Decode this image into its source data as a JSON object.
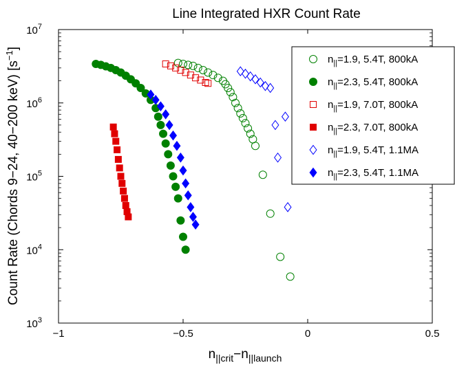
{
  "chart_data": {
    "type": "scatter",
    "title": "Line Integrated HXR Count Rate",
    "xlabel": {
      "base": "n",
      "sub1": "||crit",
      "mid": "−n",
      "sub2": "||launch"
    },
    "ylabel": {
      "main": "Count Rate (Chords 9−24, 40−200 keV) [s",
      "sup": "−1",
      "close": "]"
    },
    "xlim": [
      -1,
      0.5
    ],
    "ylim_log10": [
      3,
      7
    ],
    "yscale": "log",
    "x_ticks": [
      {
        "value": -1,
        "label": "−1"
      },
      {
        "value": -0.5,
        "label": "−0.5"
      },
      {
        "value": 0,
        "label": "0"
      },
      {
        "value": 0.5,
        "label": "0.5"
      }
    ],
    "y_ticks": [
      {
        "exp": 3,
        "base": "10",
        "sup": "3"
      },
      {
        "exp": 4,
        "base": "10",
        "sup": "4"
      },
      {
        "exp": 5,
        "base": "10",
        "sup": "5"
      },
      {
        "exp": 6,
        "base": "10",
        "sup": "6"
      },
      {
        "exp": 7,
        "base": "10",
        "sup": "7"
      }
    ],
    "grid": false,
    "legend_position": "top-right",
    "series": [
      {
        "name": {
          "n": "n",
          "sub": "||",
          "rest": "=1.9, 5.4T, 800kA"
        },
        "color": "#008000",
        "marker": "circle",
        "filled": false,
        "points": [
          [
            -0.52,
            3500000
          ],
          [
            -0.5,
            3400000
          ],
          [
            -0.48,
            3300000
          ],
          [
            -0.46,
            3200000
          ],
          [
            -0.44,
            3000000
          ],
          [
            -0.42,
            2800000
          ],
          [
            -0.4,
            2600000
          ],
          [
            -0.38,
            2400000
          ],
          [
            -0.36,
            2200000
          ],
          [
            -0.34,
            2000000
          ],
          [
            -0.33,
            1800000
          ],
          [
            -0.32,
            1600000
          ],
          [
            -0.31,
            1400000
          ],
          [
            -0.3,
            1200000
          ],
          [
            -0.29,
            1000000
          ],
          [
            -0.28,
            850000
          ],
          [
            -0.27,
            720000
          ],
          [
            -0.26,
            620000
          ],
          [
            -0.25,
            530000
          ],
          [
            -0.24,
            450000
          ],
          [
            -0.23,
            380000
          ],
          [
            -0.22,
            320000
          ],
          [
            -0.21,
            260000
          ],
          [
            -0.18,
            105000
          ],
          [
            -0.15,
            31000
          ],
          [
            -0.11,
            8000
          ],
          [
            -0.07,
            4300
          ]
        ]
      },
      {
        "name": {
          "n": "n",
          "sub": "||",
          "rest": "=2.3, 5.4T, 800kA"
        },
        "color": "#008000",
        "marker": "circle",
        "filled": true,
        "points": [
          [
            -0.85,
            3400000
          ],
          [
            -0.83,
            3300000
          ],
          [
            -0.81,
            3150000
          ],
          [
            -0.79,
            3000000
          ],
          [
            -0.77,
            2800000
          ],
          [
            -0.75,
            2600000
          ],
          [
            -0.73,
            2350000
          ],
          [
            -0.71,
            2100000
          ],
          [
            -0.69,
            1850000
          ],
          [
            -0.67,
            1600000
          ],
          [
            -0.65,
            1350000
          ],
          [
            -0.63,
            1100000
          ],
          [
            -0.61,
            850000
          ],
          [
            -0.6,
            650000
          ],
          [
            -0.59,
            500000
          ],
          [
            -0.58,
            380000
          ],
          [
            -0.57,
            280000
          ],
          [
            -0.56,
            200000
          ],
          [
            -0.55,
            140000
          ],
          [
            -0.54,
            100000
          ],
          [
            -0.53,
            72000
          ],
          [
            -0.52,
            50000
          ],
          [
            -0.51,
            25000
          ],
          [
            -0.5,
            15000
          ],
          [
            -0.49,
            10000
          ]
        ]
      },
      {
        "name": {
          "n": "n",
          "sub": "||",
          "rest": "=1.9, 7.0T, 800kA"
        },
        "color": "#e00000",
        "marker": "square",
        "filled": false,
        "points": [
          [
            -0.57,
            3400000
          ],
          [
            -0.55,
            3200000
          ],
          [
            -0.53,
            3000000
          ],
          [
            -0.51,
            2800000
          ],
          [
            -0.49,
            2600000
          ],
          [
            -0.47,
            2400000
          ],
          [
            -0.45,
            2200000
          ],
          [
            -0.43,
            2050000
          ],
          [
            -0.41,
            1900000
          ],
          [
            -0.4,
            1850000
          ]
        ]
      },
      {
        "name": {
          "n": "n",
          "sub": "||",
          "rest": "=2.3, 7.0T, 800kA"
        },
        "color": "#e00000",
        "marker": "square",
        "filled": true,
        "points": [
          [
            -0.78,
            470000
          ],
          [
            -0.775,
            380000
          ],
          [
            -0.77,
            300000
          ],
          [
            -0.765,
            230000
          ],
          [
            -0.76,
            170000
          ],
          [
            -0.755,
            130000
          ],
          [
            -0.75,
            100000
          ],
          [
            -0.745,
            80000
          ],
          [
            -0.74,
            63000
          ],
          [
            -0.735,
            50000
          ],
          [
            -0.73,
            40000
          ],
          [
            -0.725,
            33000
          ],
          [
            -0.72,
            28000
          ]
        ]
      },
      {
        "name": {
          "n": "n",
          "sub": "||",
          "rest": "=1.9, 5.4T, 1.1MA"
        },
        "color": "#0000ff",
        "marker": "diamond",
        "filled": false,
        "points": [
          [
            -0.27,
            2700000
          ],
          [
            -0.25,
            2500000
          ],
          [
            -0.23,
            2300000
          ],
          [
            -0.21,
            2100000
          ],
          [
            -0.19,
            1900000
          ],
          [
            -0.17,
            1700000
          ],
          [
            -0.15,
            1600000
          ],
          [
            -0.13,
            500000
          ],
          [
            -0.09,
            650000
          ],
          [
            -0.12,
            180000
          ],
          [
            -0.08,
            38000
          ]
        ]
      },
      {
        "name": {
          "n": "n",
          "sub": "||",
          "rest": "=2.3, 5.4T, 1.1MA"
        },
        "color": "#0000ff",
        "marker": "diamond",
        "filled": true,
        "points": [
          [
            -0.63,
            1300000
          ],
          [
            -0.61,
            1100000
          ],
          [
            -0.59,
            900000
          ],
          [
            -0.57,
            700000
          ],
          [
            -0.555,
            500000
          ],
          [
            -0.54,
            360000
          ],
          [
            -0.525,
            260000
          ],
          [
            -0.51,
            180000
          ],
          [
            -0.5,
            120000
          ],
          [
            -0.49,
            80000
          ],
          [
            -0.48,
            55000
          ],
          [
            -0.47,
            38000
          ],
          [
            -0.46,
            28000
          ],
          [
            -0.45,
            22000
          ]
        ]
      }
    ]
  }
}
